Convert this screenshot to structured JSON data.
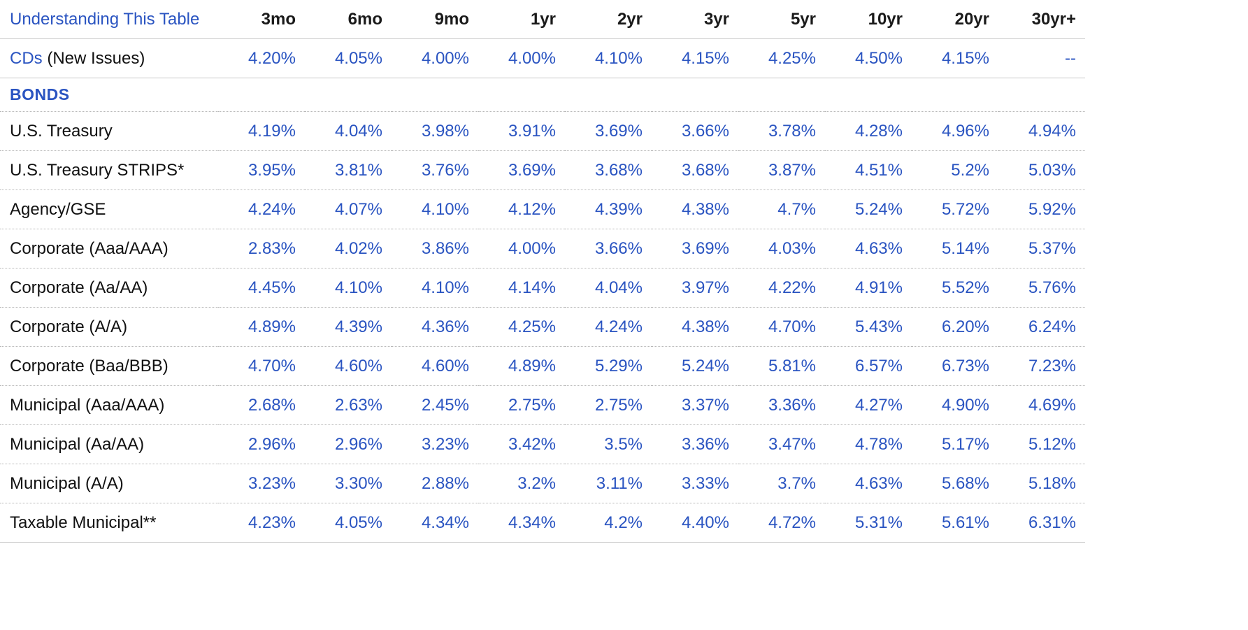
{
  "header": {
    "understanding_link": "Understanding This Table",
    "terms": [
      "3mo",
      "6mo",
      "9mo",
      "1yr",
      "2yr",
      "3yr",
      "5yr",
      "10yr",
      "20yr",
      "30yr+"
    ]
  },
  "cds": {
    "link_label": "CDs",
    "suffix": " (New Issues)",
    "values": [
      "4.20%",
      "4.05%",
      "4.00%",
      "4.00%",
      "4.10%",
      "4.15%",
      "4.25%",
      "4.50%",
      "4.15%",
      "--"
    ]
  },
  "bonds": {
    "section_title": "BONDS",
    "rows": [
      {
        "label": "U.S. Treasury",
        "values": [
          "4.19%",
          "4.04%",
          "3.98%",
          "3.91%",
          "3.69%",
          "3.66%",
          "3.78%",
          "4.28%",
          "4.96%",
          "4.94%"
        ]
      },
      {
        "label": "U.S. Treasury STRIPS*",
        "values": [
          "3.95%",
          "3.81%",
          "3.76%",
          "3.69%",
          "3.68%",
          "3.68%",
          "3.87%",
          "4.51%",
          "5.2%",
          "5.03%"
        ]
      },
      {
        "label": "Agency/GSE",
        "values": [
          "4.24%",
          "4.07%",
          "4.10%",
          "4.12%",
          "4.39%",
          "4.38%",
          "4.7%",
          "5.24%",
          "5.72%",
          "5.92%"
        ]
      },
      {
        "label": "Corporate (Aaa/AAA)",
        "values": [
          "2.83%",
          "4.02%",
          "3.86%",
          "4.00%",
          "3.66%",
          "3.69%",
          "4.03%",
          "4.63%",
          "5.14%",
          "5.37%"
        ]
      },
      {
        "label": "Corporate (Aa/AA)",
        "values": [
          "4.45%",
          "4.10%",
          "4.10%",
          "4.14%",
          "4.04%",
          "3.97%",
          "4.22%",
          "4.91%",
          "5.52%",
          "5.76%"
        ]
      },
      {
        "label": "Corporate (A/A)",
        "values": [
          "4.89%",
          "4.39%",
          "4.36%",
          "4.25%",
          "4.24%",
          "4.38%",
          "4.70%",
          "5.43%",
          "6.20%",
          "6.24%"
        ]
      },
      {
        "label": "Corporate (Baa/BBB)",
        "values": [
          "4.70%",
          "4.60%",
          "4.60%",
          "4.89%",
          "5.29%",
          "5.24%",
          "5.81%",
          "6.57%",
          "6.73%",
          "7.23%"
        ]
      },
      {
        "label": "Municipal (Aaa/AAA)",
        "values": [
          "2.68%",
          "2.63%",
          "2.45%",
          "2.75%",
          "2.75%",
          "3.37%",
          "3.36%",
          "4.27%",
          "4.90%",
          "4.69%"
        ]
      },
      {
        "label": "Municipal (Aa/AA)",
        "values": [
          "2.96%",
          "2.96%",
          "3.23%",
          "3.42%",
          "3.5%",
          "3.36%",
          "3.47%",
          "4.78%",
          "5.17%",
          "5.12%"
        ]
      },
      {
        "label": "Municipal (A/A)",
        "values": [
          "3.23%",
          "3.30%",
          "2.88%",
          "3.2%",
          "3.11%",
          "3.33%",
          "3.7%",
          "4.63%",
          "5.68%",
          "5.18%"
        ]
      },
      {
        "label": "Taxable Municipal**",
        "values": [
          "4.23%",
          "4.05%",
          "4.34%",
          "4.34%",
          "4.2%",
          "4.40%",
          "4.72%",
          "5.31%",
          "5.61%",
          "6.31%"
        ]
      }
    ]
  },
  "colors": {
    "link_blue": "#2a54c1",
    "text": "#111111",
    "rule": "#c8c8c8"
  }
}
